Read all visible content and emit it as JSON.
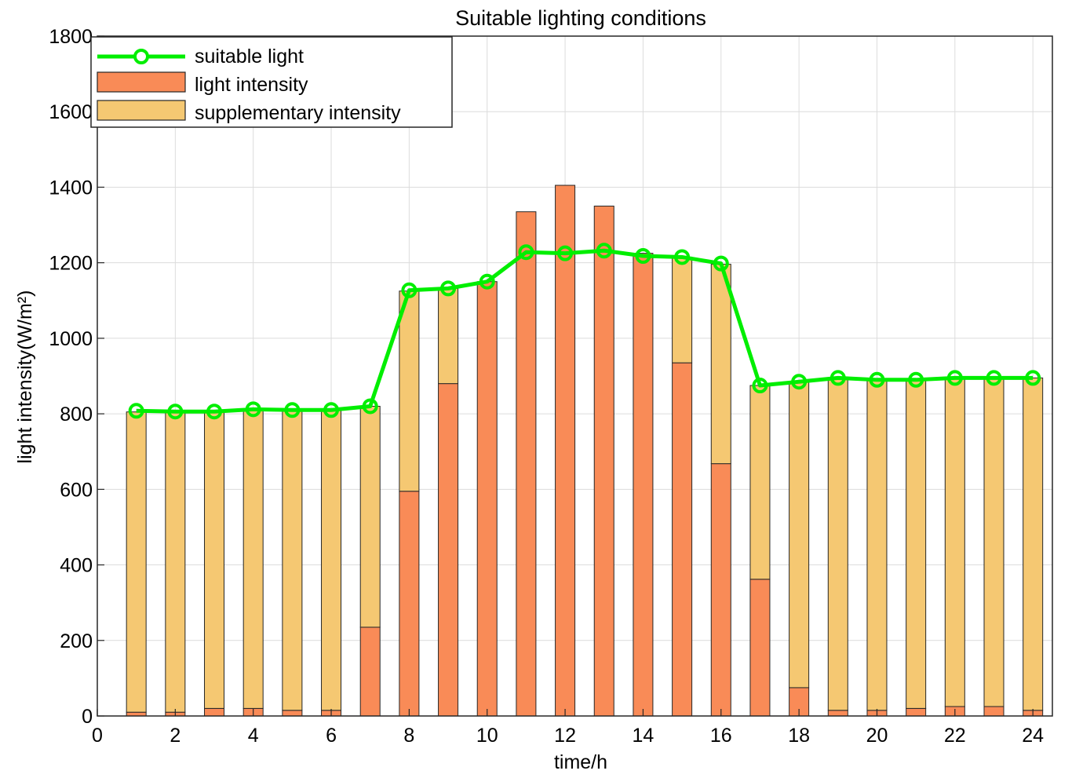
{
  "chart_data": {
    "type": "bar",
    "stacked": true,
    "title": "Suitable lighting conditions",
    "xlabel": "time/h",
    "ylabel": "light intensity(W/m²)",
    "xlim": [
      0,
      24.5
    ],
    "ylim": [
      0,
      1800
    ],
    "xticks": [
      0,
      2,
      4,
      6,
      8,
      10,
      12,
      14,
      16,
      18,
      20,
      22,
      24
    ],
    "yticks": [
      0,
      200,
      400,
      600,
      800,
      1000,
      1200,
      1400,
      1600,
      1800
    ],
    "grid": true,
    "legend_position": "top-left",
    "x": [
      1,
      2,
      3,
      4,
      5,
      6,
      7,
      8,
      9,
      10,
      11,
      12,
      13,
      14,
      15,
      16,
      17,
      18,
      19,
      20,
      21,
      22,
      23,
      24
    ],
    "series": [
      {
        "name": "suitable light",
        "kind": "line",
        "color": "#00ee00",
        "values": [
          808,
          806,
          806,
          812,
          810,
          810,
          820,
          1127,
          1132,
          1150,
          1228,
          1225,
          1232,
          1218,
          1215,
          1198,
          875,
          885,
          895,
          890,
          890,
          895,
          895,
          895
        ]
      },
      {
        "name": "light intensity",
        "kind": "bar",
        "color": "#f98b57",
        "values": [
          10,
          10,
          20,
          20,
          15,
          15,
          235,
          595,
          880,
          1150,
          1335,
          1405,
          1350,
          1225,
          935,
          668,
          362,
          75,
          15,
          15,
          20,
          25,
          25,
          15
        ]
      },
      {
        "name": "supplementary intensity",
        "kind": "bar",
        "color": "#f5c872",
        "values": [
          795,
          795,
          785,
          790,
          795,
          795,
          585,
          530,
          252,
          0,
          0,
          0,
          0,
          0,
          280,
          528,
          513,
          810,
          880,
          875,
          870,
          870,
          870,
          880
        ]
      }
    ]
  }
}
